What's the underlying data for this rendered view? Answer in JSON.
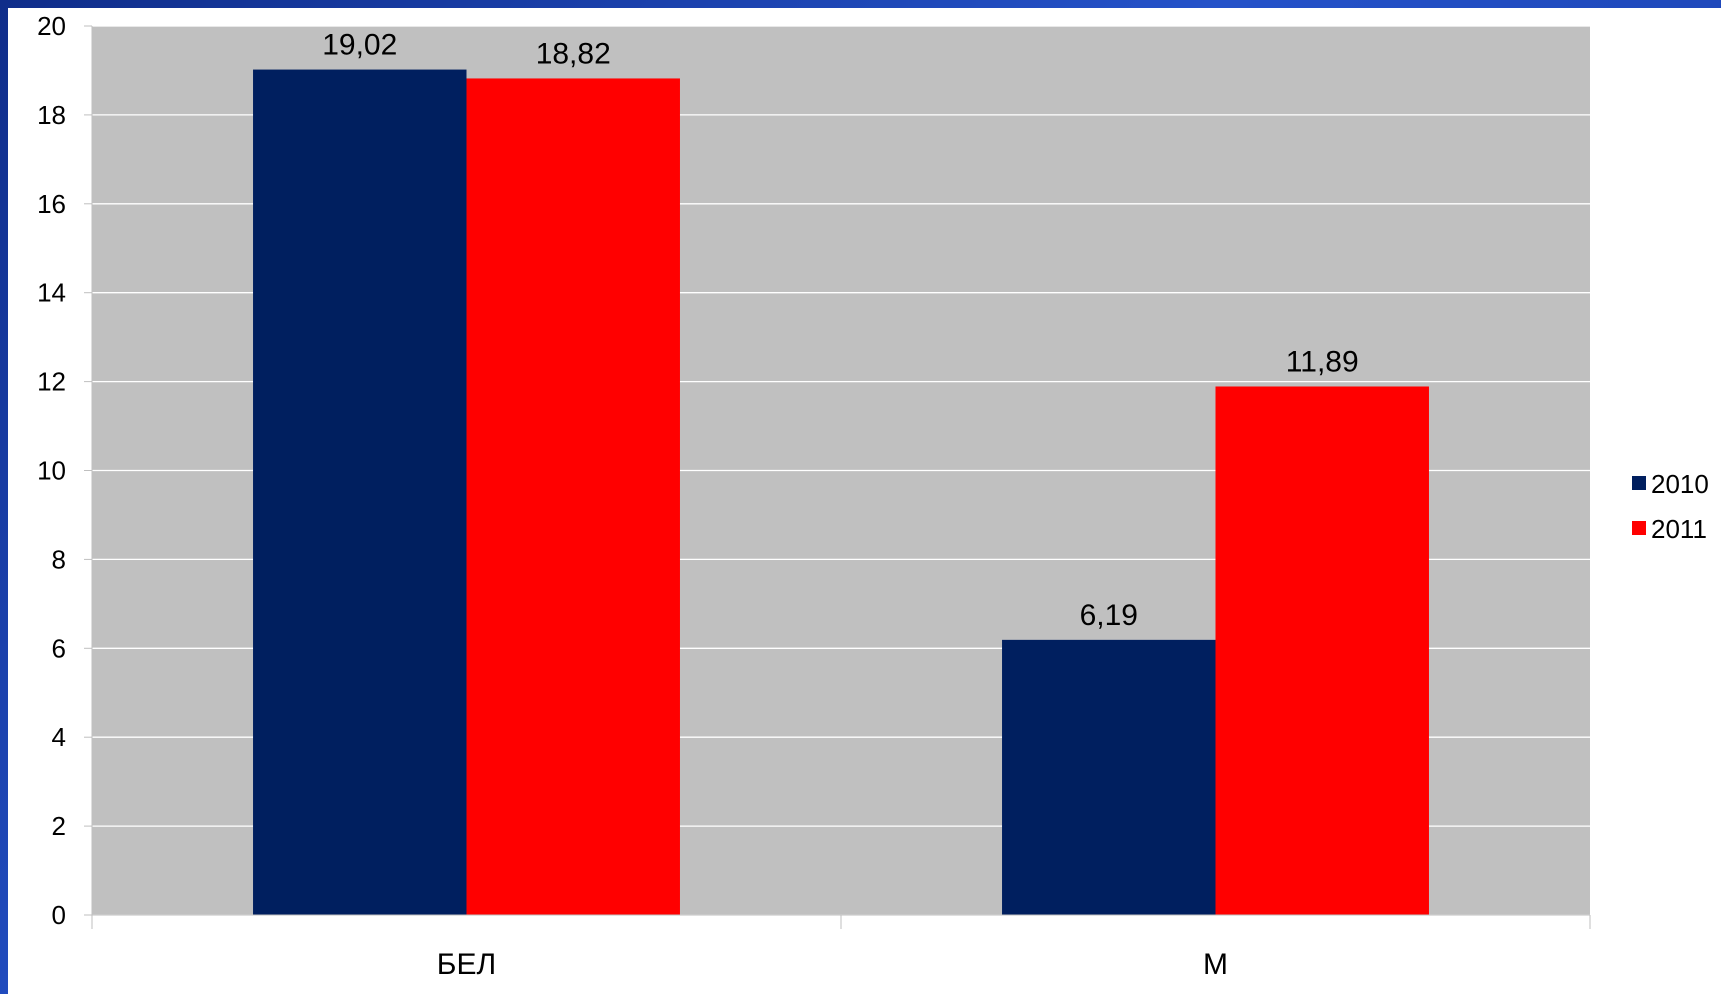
{
  "chart_data": {
    "type": "bar",
    "categories": [
      "БЕЛ",
      "М"
    ],
    "series": [
      {
        "name": "2010",
        "values": [
          19.02,
          6.19
        ],
        "labels": [
          "19,02",
          "6,19"
        ],
        "color": "#001f5f"
      },
      {
        "name": "2011",
        "values": [
          18.82,
          11.89
        ],
        "labels": [
          "18,82",
          "11,89"
        ],
        "color": "#ff0000"
      }
    ],
    "ylim": [
      0,
      20
    ],
    "yticks": [
      0,
      2,
      4,
      6,
      8,
      10,
      12,
      14,
      16,
      18,
      20
    ],
    "grid": true,
    "legend": "right",
    "plot_background": "#c0c0c0",
    "page_background": "#ffffff",
    "gridline_color": "#ffffff"
  }
}
